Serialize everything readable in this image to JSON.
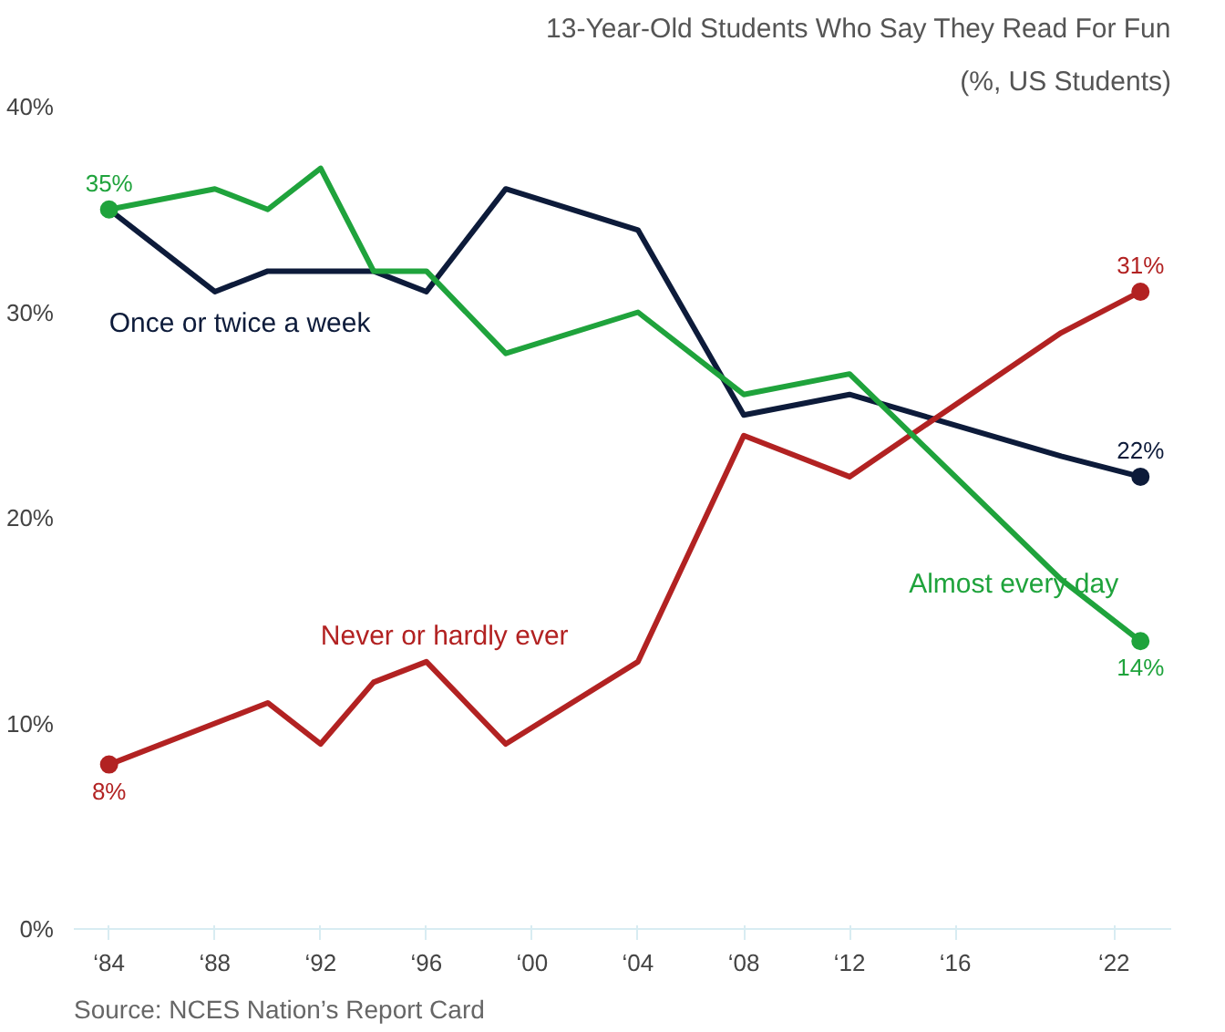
{
  "chart_data": {
    "type": "line",
    "title": "13-Year-Old Students Who Say They Read For Fun",
    "subtitle": "(%, US Students)",
    "x": [
      "1984",
      "1988",
      "1990",
      "1992",
      "1994",
      "1996",
      "1999",
      "2004",
      "2008",
      "2012",
      "2020",
      "2023"
    ],
    "series": [
      {
        "name": "Once or twice a week",
        "color": "#0d1b3a",
        "values": [
          35,
          31,
          32,
          32,
          32,
          31,
          36,
          34,
          25,
          26,
          23,
          22
        ],
        "value_labels": [
          null,
          null,
          null,
          null,
          null,
          null,
          null,
          null,
          null,
          null,
          null,
          "22%"
        ]
      },
      {
        "name": "Never or hardly ever",
        "color": "#b22222",
        "values": [
          8,
          10,
          11,
          9,
          12,
          13,
          9,
          13,
          24,
          22,
          29,
          31
        ],
        "value_labels": [
          "8%",
          null,
          null,
          null,
          null,
          null,
          null,
          null,
          null,
          null,
          null,
          "31%"
        ]
      },
      {
        "name": "Almost every day",
        "color": "#1fa33c",
        "values": [
          35,
          36,
          35,
          37,
          32,
          32,
          28,
          30,
          26,
          27,
          17,
          14
        ],
        "value_labels": [
          "35%",
          null,
          null,
          null,
          null,
          null,
          null,
          null,
          null,
          null,
          null,
          "14%"
        ]
      }
    ],
    "xlim": [
      "1982-09",
      "2024-03"
    ],
    "xticks": [
      {
        "value": "1984",
        "label": "‘84"
      },
      {
        "value": "1988",
        "label": "‘88"
      },
      {
        "value": "1992",
        "label": "‘92"
      },
      {
        "value": "1996",
        "label": "‘96"
      },
      {
        "value": "2000",
        "label": "‘00"
      },
      {
        "value": "2004",
        "label": "‘04"
      },
      {
        "value": "2008",
        "label": "‘08"
      },
      {
        "value": "2012",
        "label": "‘12"
      },
      {
        "value": "2016",
        "label": "‘16"
      },
      {
        "value": "2022",
        "label": "‘22"
      }
    ],
    "ylim": [
      0,
      40
    ],
    "yticks": [
      {
        "value": 0,
        "label": "0%"
      },
      {
        "value": 10,
        "label": "10%"
      },
      {
        "value": 20,
        "label": "20%"
      },
      {
        "value": 30,
        "label": "30%"
      },
      {
        "value": 40,
        "label": "40%"
      }
    ],
    "grid": false,
    "line_style": "solid",
    "annotations": [
      "Source: NCES Nation’s Report Card"
    ]
  }
}
